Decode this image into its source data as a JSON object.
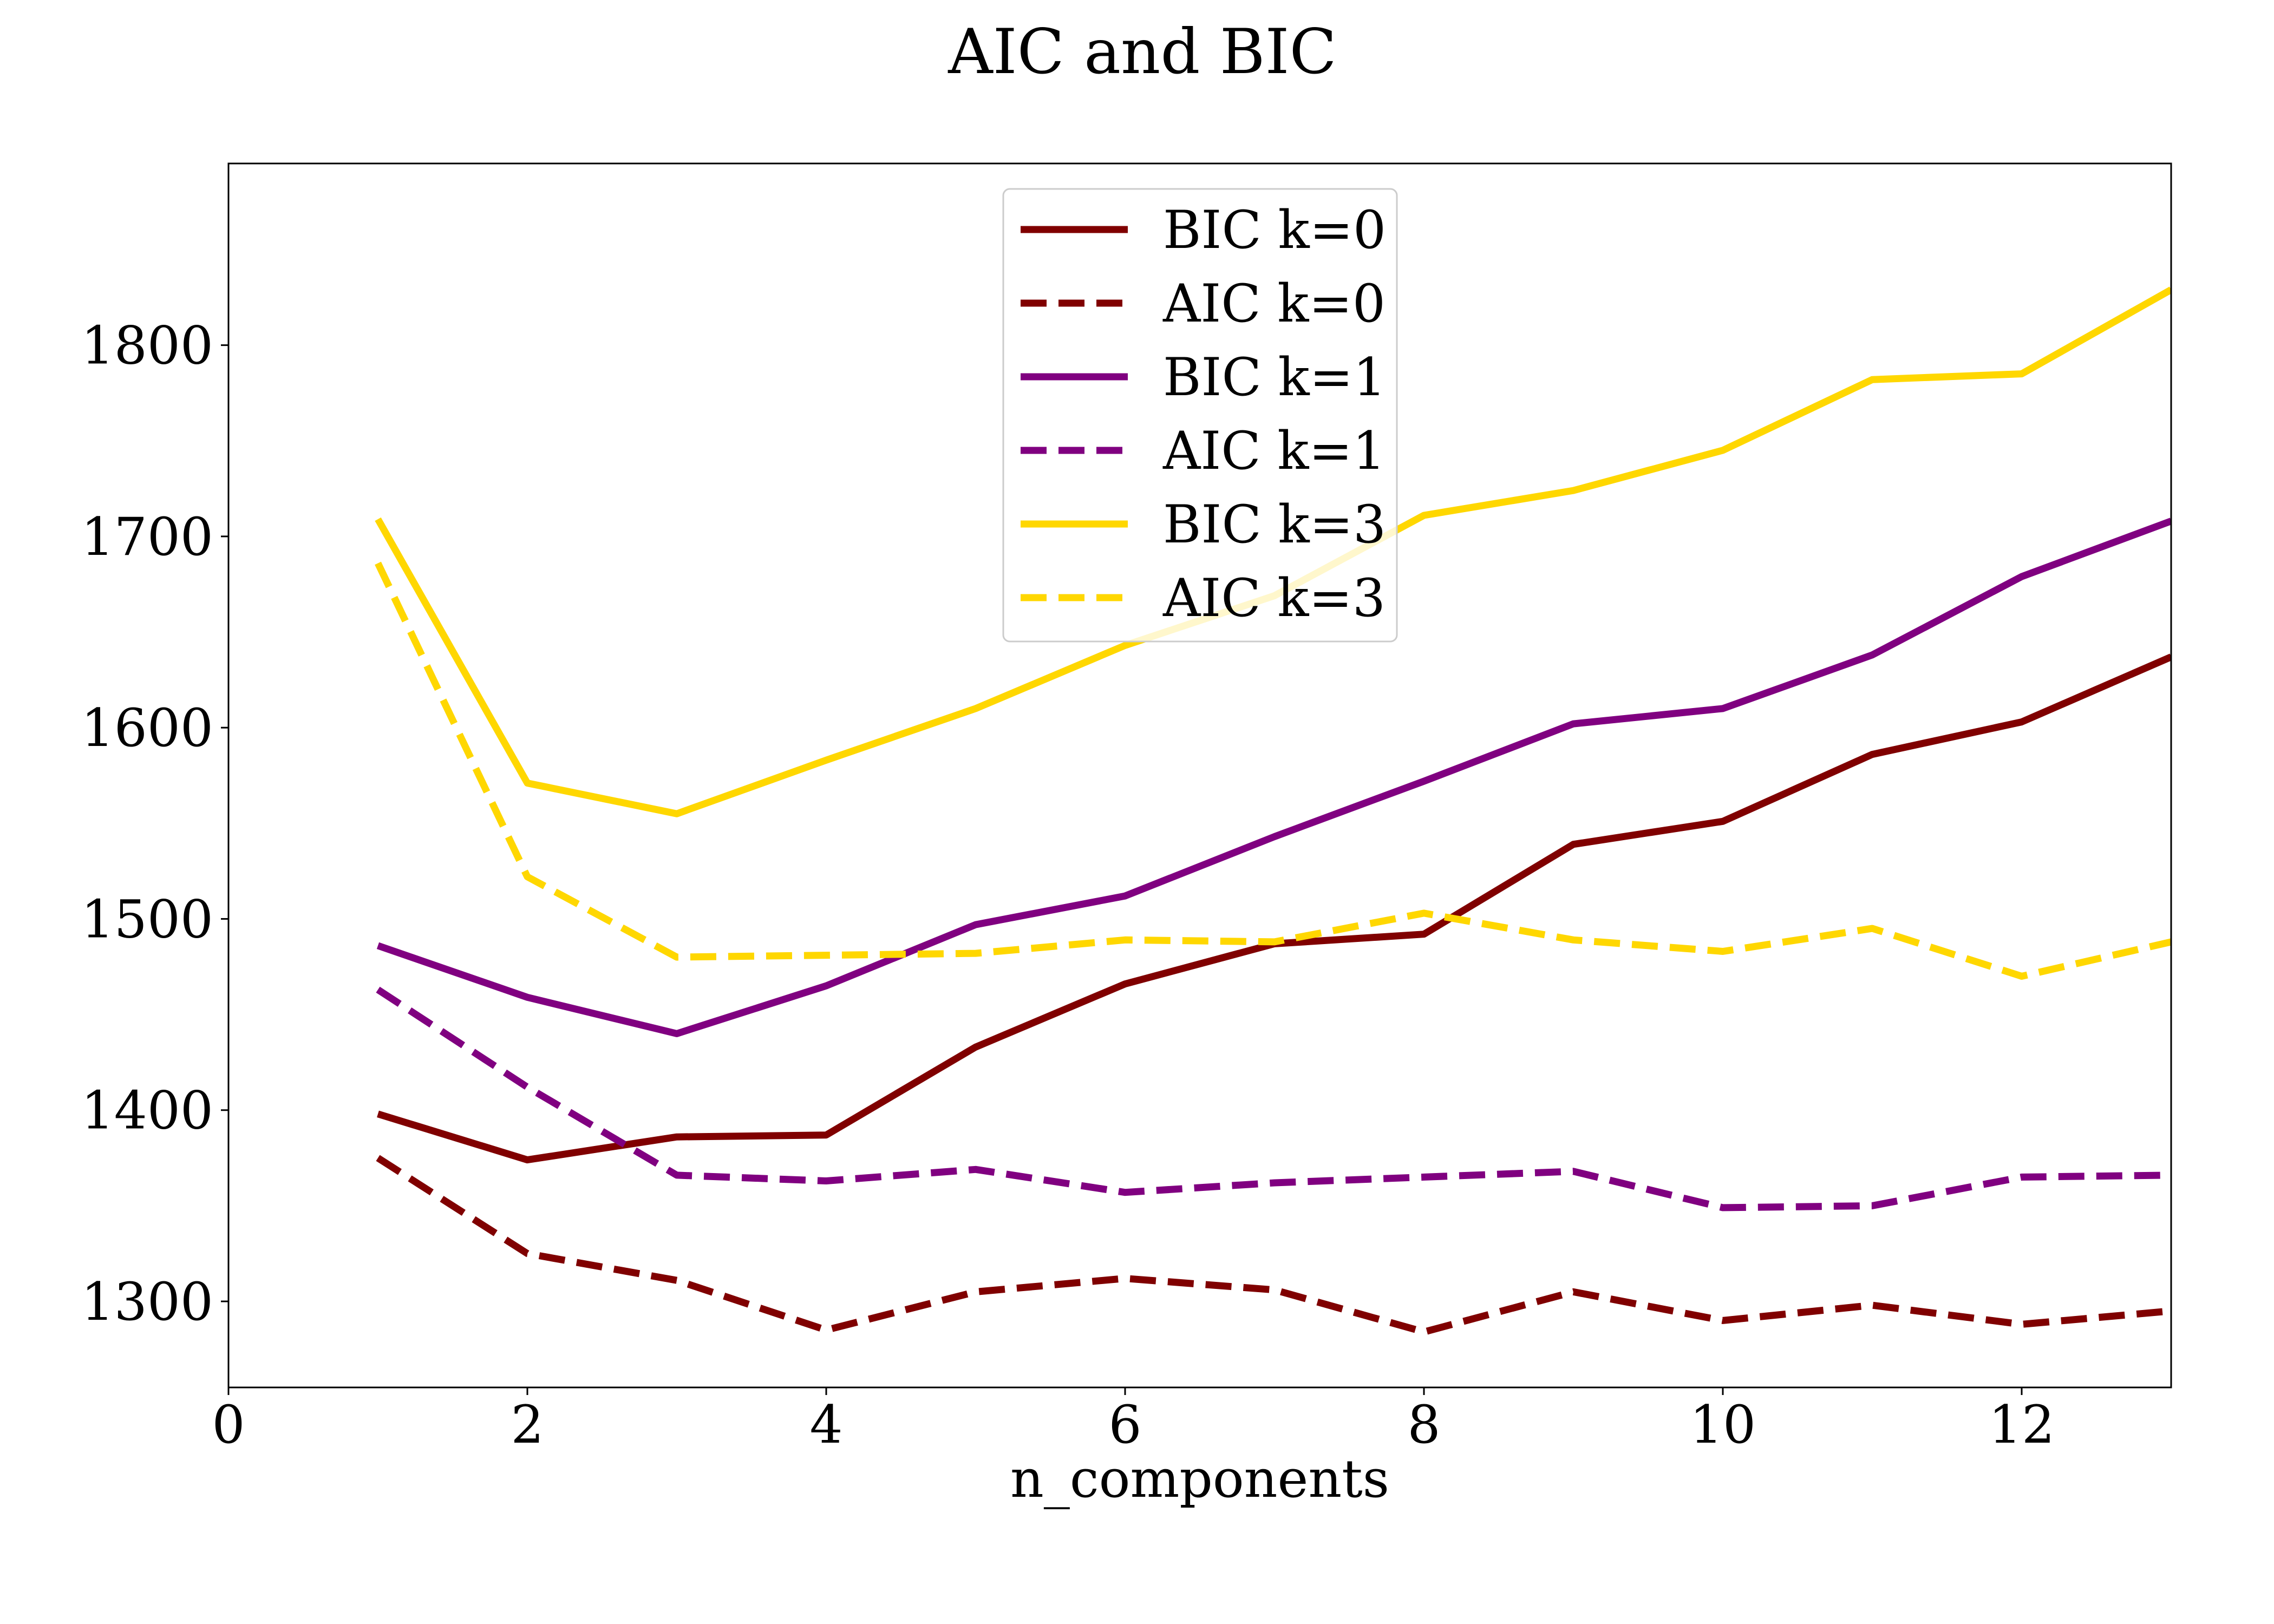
{
  "chart_data": {
    "type": "line",
    "title": "AIC and BIC",
    "xlabel": "n_components",
    "ylabel": "",
    "xlim": [
      0,
      13
    ],
    "ylim": [
      1255,
      1895
    ],
    "xticks": [
      0,
      2,
      4,
      6,
      8,
      10,
      12
    ],
    "yticks": [
      1300,
      1400,
      1500,
      1600,
      1700,
      1800
    ],
    "grid": false,
    "legend_position": "top-center",
    "x": [
      1,
      2,
      3,
      4,
      5,
      6,
      7,
      8,
      9,
      10,
      11,
      12,
      13
    ],
    "series": [
      {
        "name": "BIC k=0",
        "color": "#800000",
        "dash": "solid",
        "values": [
          1398,
          1374,
          1386,
          1387,
          1433,
          1466,
          1487,
          1492,
          1539,
          1551,
          1586,
          1603,
          1637
        ]
      },
      {
        "name": "AIC k=0",
        "color": "#800000",
        "dash": "dashed",
        "values": [
          1375,
          1325,
          1311,
          1285,
          1305,
          1312,
          1306,
          1284,
          1305,
          1290,
          1298,
          1288,
          1295
        ]
      },
      {
        "name": "BIC k=1",
        "color": "#800080",
        "dash": "solid",
        "values": [
          1486,
          1459,
          1440,
          1465,
          1497,
          1512,
          1543,
          1572,
          1602,
          1610,
          1638,
          1679,
          1708
        ]
      },
      {
        "name": "AIC k=1",
        "color": "#800080",
        "dash": "dashed",
        "values": [
          1463,
          1412,
          1366,
          1363,
          1369,
          1357,
          1362,
          1365,
          1368,
          1349,
          1350,
          1365,
          1366
        ]
      },
      {
        "name": "BIC k=3",
        "color": "#ffd700",
        "dash": "solid",
        "values": [
          1709,
          1571,
          1555,
          1583,
          1610,
          1643,
          1669,
          1711,
          1724,
          1745,
          1782,
          1785,
          1829
        ]
      },
      {
        "name": "AIC k=3",
        "color": "#ffd700",
        "dash": "dashed",
        "values": [
          1686,
          1522,
          1480,
          1481,
          1482,
          1489,
          1488,
          1503,
          1489,
          1483,
          1495,
          1470,
          1488
        ]
      }
    ]
  }
}
